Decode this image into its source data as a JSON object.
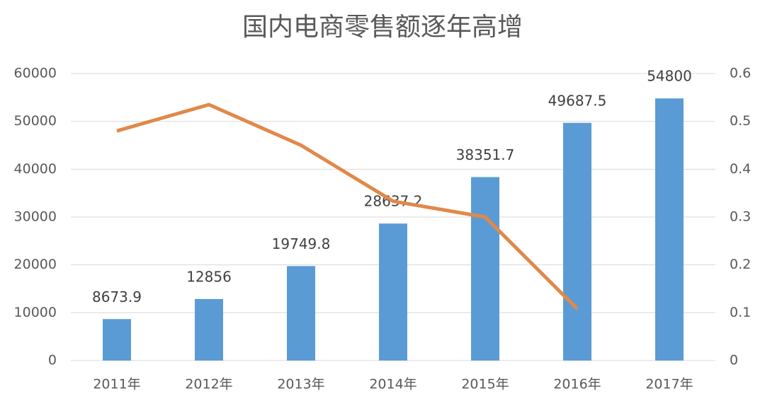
{
  "chart_data": {
    "type": "combo",
    "title": "国内电商零售额逐年高增",
    "categories": [
      "2011年",
      "2012年",
      "2013年",
      "2014年",
      "2015年",
      "2016年",
      "2017年"
    ],
    "series": [
      {
        "type": "bar",
        "color": "#5b9bd5",
        "values": [
          8673.9,
          12856,
          19749.8,
          28637.2,
          38351.7,
          49687.5,
          54800
        ]
      },
      {
        "type": "line",
        "axis": "y2",
        "color": "#e0894a",
        "values": [
          0.48,
          0.535,
          0.45,
          0.333,
          0.3,
          0.108,
          null
        ]
      }
    ],
    "ylim": [
      0,
      60000
    ],
    "yticks": [
      0,
      10000,
      20000,
      30000,
      40000,
      50000,
      60000
    ],
    "y2lim": [
      0,
      0.6
    ],
    "y2ticks": [
      0,
      0.1,
      0.2,
      0.3,
      0.4,
      0.5,
      0.6
    ],
    "grid": true
  }
}
